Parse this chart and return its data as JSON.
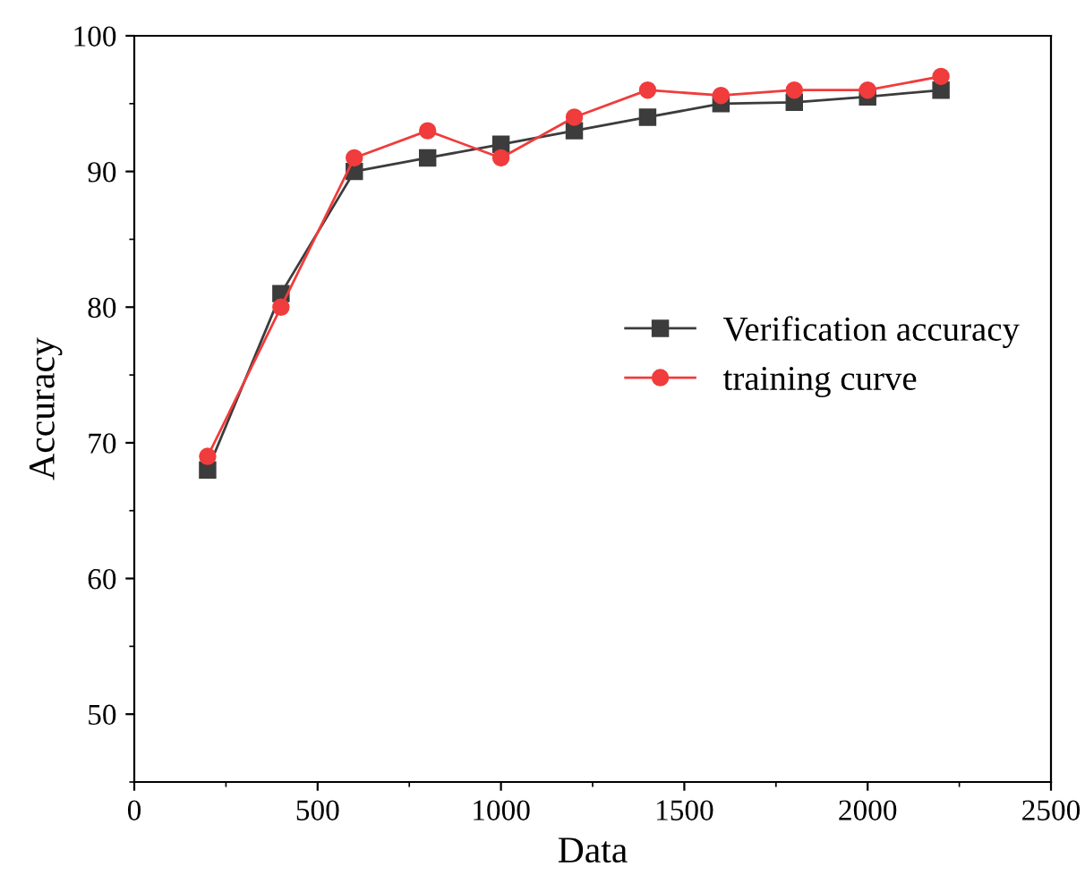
{
  "chart_data": {
    "type": "line",
    "xlabel": "Data",
    "ylabel": "Accuracy",
    "x": [
      200,
      400,
      600,
      800,
      1000,
      1200,
      1400,
      1600,
      1800,
      2000,
      2200
    ],
    "series": [
      {
        "name": "Verification accuracy",
        "color": "#3c3c3c",
        "marker": "square",
        "values": [
          68,
          81,
          90,
          91,
          92,
          93,
          94,
          95,
          95.1,
          95.5,
          96
        ]
      },
      {
        "name": "training curve",
        "color": "#f03c3c",
        "marker": "circle",
        "values": [
          69,
          80,
          91,
          93,
          91,
          94,
          96,
          95.6,
          96,
          96,
          97
        ]
      }
    ],
    "xlim": [
      0,
      2500
    ],
    "xticks": [
      0,
      500,
      1000,
      1500,
      2000,
      2500
    ],
    "ylim": [
      45,
      100
    ],
    "yticks": [
      50,
      60,
      70,
      80,
      90,
      100
    ],
    "grid": false,
    "legend": "right",
    "line_style": "solid"
  }
}
